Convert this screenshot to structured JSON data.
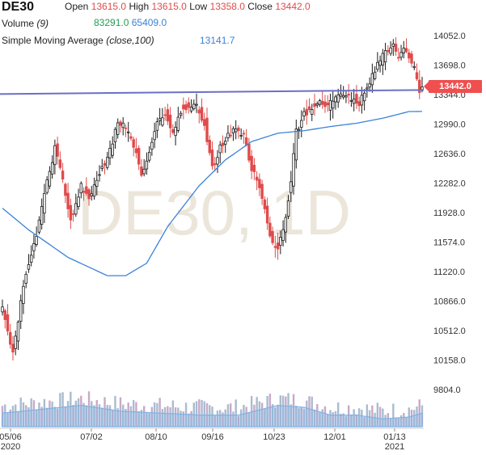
{
  "header": {
    "symbol": "DE30",
    "open_label": "Open",
    "open_value": "13615.0",
    "high_label": "High",
    "high_value": "13615.0",
    "low_label": "Low",
    "low_value": "13358.0",
    "close_label": "Close",
    "close_value": "13442.0",
    "volume_label": "Volume",
    "volume_period": "(9)",
    "volume_value": "83291.0",
    "volume_ma_value": "65409.0",
    "sma_label": "Simple Moving Average",
    "sma_params": "(close,100)",
    "sma_value": "13141.7"
  },
  "watermark": "DE30, 1D",
  "price_tag": "13442.0",
  "colors": {
    "up": "#1f9d55",
    "down": "#e04b4b",
    "sma": "#3b82d8",
    "horizontal_line": "#6b6fc4",
    "volume_bar": "#a9bcd0",
    "volume_ma": "#7fb2e5",
    "price_tag_bg": "#ef4f4f"
  },
  "chart_data": {
    "type": "candlestick",
    "y_ticks": [
      "14052.0",
      "13698.0",
      "13344.0",
      "12990.0",
      "12636.0",
      "12282.0",
      "11928.0",
      "11574.0",
      "11220.0",
      "10866.0",
      "10512.0",
      "10158.0",
      "9804.0"
    ],
    "x_ticks": [
      "05/06",
      "07/02",
      "08/10",
      "09/16",
      "10/23",
      "12/01",
      "01/13"
    ],
    "x_year_labels": [
      "2020",
      "2021"
    ],
    "ylim": [
      9700,
      14300
    ],
    "horizontal_line": 13370,
    "sma_keypoints": [
      {
        "i": 0,
        "v": 11980
      },
      {
        "i": 10,
        "v": 11720
      },
      {
        "i": 25,
        "v": 11390
      },
      {
        "i": 40,
        "v": 11170
      },
      {
        "i": 47,
        "v": 11170
      },
      {
        "i": 55,
        "v": 11320
      },
      {
        "i": 63,
        "v": 11760
      },
      {
        "i": 75,
        "v": 12250
      },
      {
        "i": 85,
        "v": 12560
      },
      {
        "i": 95,
        "v": 12780
      },
      {
        "i": 105,
        "v": 12880
      },
      {
        "i": 115,
        "v": 12910
      },
      {
        "i": 125,
        "v": 12960
      },
      {
        "i": 135,
        "v": 13000
      },
      {
        "i": 145,
        "v": 13060
      },
      {
        "i": 155,
        "v": 13140
      },
      {
        "i": 160,
        "v": 13141.7
      }
    ],
    "close_keypoints": [
      {
        "i": 0,
        "v": 10800
      },
      {
        "i": 2,
        "v": 10500
      },
      {
        "i": 4,
        "v": 10250
      },
      {
        "i": 6,
        "v": 10650
      },
      {
        "i": 9,
        "v": 11200
      },
      {
        "i": 13,
        "v": 11650
      },
      {
        "i": 17,
        "v": 12300
      },
      {
        "i": 20,
        "v": 12700
      },
      {
        "i": 23,
        "v": 12300
      },
      {
        "i": 26,
        "v": 11850
      },
      {
        "i": 30,
        "v": 12250
      },
      {
        "i": 33,
        "v": 12100
      },
      {
        "i": 37,
        "v": 12400
      },
      {
        "i": 40,
        "v": 12550
      },
      {
        "i": 44,
        "v": 13000
      },
      {
        "i": 47,
        "v": 12950
      },
      {
        "i": 50,
        "v": 12750
      },
      {
        "i": 53,
        "v": 12400
      },
      {
        "i": 56,
        "v": 12650
      },
      {
        "i": 59,
        "v": 13000
      },
      {
        "i": 62,
        "v": 13100
      },
      {
        "i": 65,
        "v": 12900
      },
      {
        "i": 68,
        "v": 13150
      },
      {
        "i": 71,
        "v": 13200
      },
      {
        "i": 74,
        "v": 13200
      },
      {
        "i": 77,
        "v": 13000
      },
      {
        "i": 80,
        "v": 12450
      },
      {
        "i": 83,
        "v": 12700
      },
      {
        "i": 86,
        "v": 12850
      },
      {
        "i": 89,
        "v": 12950
      },
      {
        "i": 92,
        "v": 12850
      },
      {
        "i": 95,
        "v": 12450
      },
      {
        "i": 98,
        "v": 12250
      },
      {
        "i": 100,
        "v": 11950
      },
      {
        "i": 103,
        "v": 11550
      },
      {
        "i": 105,
        "v": 11500
      },
      {
        "i": 107,
        "v": 11700
      },
      {
        "i": 110,
        "v": 12300
      },
      {
        "i": 112,
        "v": 12900
      },
      {
        "i": 115,
        "v": 13100
      },
      {
        "i": 118,
        "v": 13200
      },
      {
        "i": 121,
        "v": 13250
      },
      {
        "i": 124,
        "v": 13200
      },
      {
        "i": 127,
        "v": 13300
      },
      {
        "i": 130,
        "v": 13350
      },
      {
        "i": 133,
        "v": 13300
      },
      {
        "i": 136,
        "v": 13250
      },
      {
        "i": 138,
        "v": 13350
      },
      {
        "i": 140,
        "v": 13500
      },
      {
        "i": 143,
        "v": 13700
      },
      {
        "i": 146,
        "v": 13850
      },
      {
        "i": 149,
        "v": 13950
      },
      {
        "i": 151,
        "v": 13750
      },
      {
        "i": 153,
        "v": 13900
      },
      {
        "i": 155,
        "v": 13800
      },
      {
        "i": 157,
        "v": 13650
      },
      {
        "i": 159,
        "v": 13400
      },
      {
        "i": 160,
        "v": 13442
      }
    ],
    "volume_ma_keypoints": [
      {
        "i": 0,
        "v": 0.35
      },
      {
        "i": 15,
        "v": 0.45
      },
      {
        "i": 30,
        "v": 0.55
      },
      {
        "i": 45,
        "v": 0.4
      },
      {
        "i": 60,
        "v": 0.35
      },
      {
        "i": 75,
        "v": 0.3
      },
      {
        "i": 90,
        "v": 0.3
      },
      {
        "i": 105,
        "v": 0.55
      },
      {
        "i": 115,
        "v": 0.5
      },
      {
        "i": 125,
        "v": 0.3
      },
      {
        "i": 135,
        "v": 0.3
      },
      {
        "i": 145,
        "v": 0.2
      },
      {
        "i": 155,
        "v": 0.25
      },
      {
        "i": 160,
        "v": 0.35
      }
    ]
  }
}
